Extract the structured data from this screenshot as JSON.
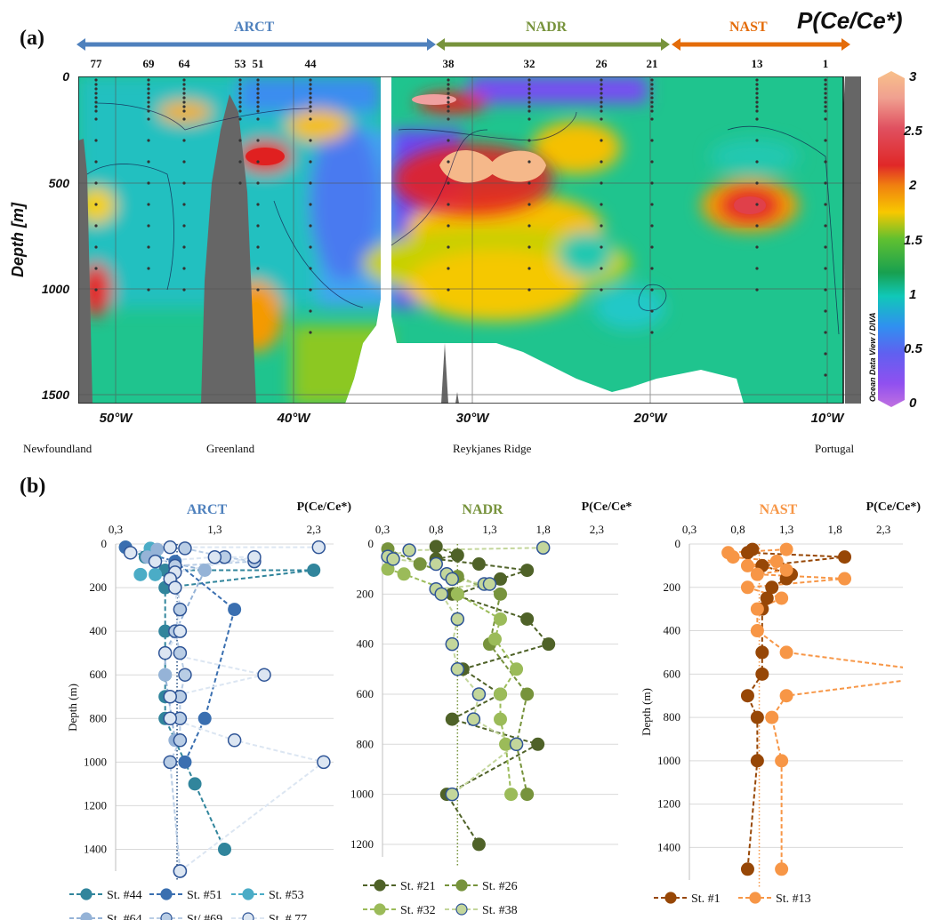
{
  "panel_a": {
    "label": "(a)",
    "title": "P(Ce/Ce*)",
    "provinces": [
      {
        "name": "ARCT",
        "color": "#4f81bd"
      },
      {
        "name": "NADR",
        "color": "#77933c"
      },
      {
        "name": "NAST",
        "color": "#e46c0a"
      }
    ],
    "stations": [
      "77",
      "69",
      "64",
      "53",
      "51",
      "44",
      "38",
      "32",
      "26",
      "21",
      "13",
      "1"
    ],
    "y_axis_title": "Depth [m]",
    "depth_ticks": [
      "0",
      "500",
      "1000",
      "1500"
    ],
    "lon_ticks": [
      "50°W",
      "40°W",
      "30°W",
      "20°W",
      "10°W"
    ],
    "places": [
      "Newfoundland",
      "Greenland",
      "Reykjanes Ridge",
      "Portugal"
    ],
    "contour_label": "1",
    "colorbar": {
      "ticks": [
        "3",
        "2.5",
        "2",
        "1.5",
        "1",
        "0.5",
        "0"
      ],
      "range": [
        0,
        3
      ]
    },
    "credit": "Ocean Data View / DIVA"
  },
  "panel_b": {
    "label": "(b)"
  },
  "chart_data": [
    {
      "type": "scatter",
      "title": "ARCT",
      "xlabel": "P(Ce/Ce*)",
      "ylabel": "Depth (m)",
      "x_ticks": [
        "0,3",
        "1,3",
        "2,3"
      ],
      "y_ticks": [
        "0",
        "200",
        "400",
        "600",
        "800",
        "1000",
        "1200",
        "1400"
      ],
      "xlim": [
        0.3,
        2.5
      ],
      "ylim": [
        0,
        1500
      ],
      "series": [
        {
          "name": "St. #44",
          "color": "#31859c",
          "points": [
            [
              0.4,
              15
            ],
            [
              0.6,
              60
            ],
            [
              0.8,
              120
            ],
            [
              2.3,
              120
            ],
            [
              0.8,
              200
            ],
            [
              0.8,
              400
            ],
            [
              0.8,
              600
            ],
            [
              0.8,
              700
            ],
            [
              0.8,
              800
            ],
            [
              1.1,
              1100
            ],
            [
              1.4,
              1400
            ]
          ]
        },
        {
          "name": "St. #51",
          "color": "#3a6fb0",
          "points": [
            [
              0.4,
              15
            ],
            [
              0.9,
              80
            ],
            [
              1.5,
              300
            ],
            [
              1.2,
              800
            ],
            [
              1.0,
              1000
            ]
          ]
        },
        {
          "name": "St. #53",
          "color": "#4bacc6",
          "points": [
            [
              0.65,
              20
            ],
            [
              0.7,
              70
            ],
            [
              0.7,
              140
            ],
            [
              0.55,
              140
            ]
          ]
        },
        {
          "name": "St. #64",
          "color": "#95b3d7",
          "points": [
            [
              0.72,
              25
            ],
            [
              0.62,
              60
            ],
            [
              1.2,
              120
            ],
            [
              0.8,
              500
            ],
            [
              0.8,
              600
            ],
            [
              0.9,
              900
            ]
          ]
        },
        {
          "name": "St/ #69",
          "color": "#b9cde5",
          "points": [
            [
              1.0,
              20
            ],
            [
              1.4,
              60
            ],
            [
              1.7,
              80
            ],
            [
              0.9,
              100
            ],
            [
              0.95,
              300
            ],
            [
              0.9,
              400
            ],
            [
              0.95,
              500
            ],
            [
              1.0,
              600
            ],
            [
              0.95,
              700
            ],
            [
              0.95,
              800
            ],
            [
              0.95,
              900
            ],
            [
              0.85,
              1000
            ],
            [
              0.95,
              1500
            ]
          ]
        },
        {
          "name": "St. # 77",
          "color": "#dce6f2",
          "points": [
            [
              2.35,
              15
            ],
            [
              0.85,
              15
            ],
            [
              0.45,
              40
            ],
            [
              0.7,
              80
            ],
            [
              1.3,
              60
            ],
            [
              1.7,
              60
            ],
            [
              0.9,
              130
            ],
            [
              0.85,
              160
            ],
            [
              0.9,
              200
            ],
            [
              0.95,
              400
            ],
            [
              0.8,
              500
            ],
            [
              1.8,
              600
            ],
            [
              0.85,
              700
            ],
            [
              0.85,
              800
            ],
            [
              1.5,
              900
            ],
            [
              2.4,
              1000
            ],
            [
              0.95,
              1500
            ]
          ]
        }
      ]
    },
    {
      "type": "scatter",
      "title": "NADR",
      "xlabel": "P(Ce/Ce*)",
      "ylabel": "Depth (m)",
      "x_ticks": [
        "0,3",
        "0,8",
        "1,3",
        "1,8",
        "2,3"
      ],
      "y_ticks": [
        "0",
        "200",
        "400",
        "600",
        "800",
        "1000",
        "1200"
      ],
      "xlim": [
        0.3,
        2.5
      ],
      "ylim": [
        0,
        1250
      ],
      "series": [
        {
          "name": "St. #21",
          "color": "#4f6228",
          "points": [
            [
              0.8,
              10
            ],
            [
              1.0,
              45
            ],
            [
              0.8,
              60
            ],
            [
              1.2,
              80
            ],
            [
              1.65,
              105
            ],
            [
              1.4,
              140
            ],
            [
              1.0,
              200
            ],
            [
              0.95,
              200
            ],
            [
              1.65,
              300
            ],
            [
              1.85,
              400
            ],
            [
              1.05,
              500
            ],
            [
              1.4,
              600
            ],
            [
              0.95,
              700
            ],
            [
              1.75,
              800
            ],
            [
              0.9,
              1000
            ],
            [
              1.2,
              1200
            ]
          ]
        },
        {
          "name": "St. #26",
          "color": "#77933c",
          "points": [
            [
              0.35,
              20
            ],
            [
              0.65,
              80
            ],
            [
              1.0,
              130
            ],
            [
              1.4,
              200
            ],
            [
              1.3,
              400
            ],
            [
              1.65,
              600
            ],
            [
              1.55,
              800
            ],
            [
              1.65,
              1000
            ]
          ]
        },
        {
          "name": "St. #32",
          "color": "#9bbb59",
          "points": [
            [
              0.35,
              100
            ],
            [
              0.5,
              120
            ],
            [
              1.0,
              200
            ],
            [
              1.4,
              300
            ],
            [
              1.35,
              380
            ],
            [
              1.55,
              500
            ],
            [
              1.4,
              600
            ],
            [
              1.4,
              700
            ],
            [
              1.45,
              800
            ],
            [
              1.5,
              1000
            ]
          ]
        },
        {
          "name": "St. #38",
          "color": "#c3d69b",
          "points": [
            [
              1.8,
              15
            ],
            [
              0.55,
              25
            ],
            [
              0.35,
              50
            ],
            [
              0.4,
              60
            ],
            [
              0.8,
              80
            ],
            [
              0.9,
              120
            ],
            [
              0.95,
              140
            ],
            [
              1.25,
              160
            ],
            [
              1.3,
              160
            ],
            [
              0.8,
              180
            ],
            [
              0.85,
              200
            ],
            [
              1.0,
              300
            ],
            [
              0.95,
              400
            ],
            [
              1.0,
              500
            ],
            [
              1.2,
              600
            ],
            [
              1.15,
              700
            ],
            [
              1.55,
              800
            ],
            [
              0.95,
              1000
            ]
          ]
        }
      ]
    },
    {
      "type": "scatter",
      "title": "NAST",
      "xlabel": "P(Ce/Ce*)",
      "ylabel": "Depth (m)",
      "x_ticks": [
        "0,3",
        "0,8",
        "1,3",
        "1,8",
        "2,3"
      ],
      "y_ticks": [
        "0",
        "200",
        "400",
        "600",
        "800",
        "1000",
        "1200",
        "1400"
      ],
      "xlim": [
        0.3,
        2.5
      ],
      "ylim": [
        0,
        1550
      ],
      "series": [
        {
          "name": "St. #1",
          "color": "#974706",
          "points": [
            [
              0.95,
              25
            ],
            [
              0.9,
              40
            ],
            [
              1.9,
              60
            ],
            [
              1.05,
              100
            ],
            [
              1.35,
              140
            ],
            [
              1.3,
              160
            ],
            [
              1.15,
              200
            ],
            [
              1.1,
              250
            ],
            [
              1.05,
              300
            ],
            [
              1.05,
              500
            ],
            [
              1.05,
              600
            ],
            [
              0.9,
              700
            ],
            [
              1.0,
              800
            ],
            [
              1.0,
              1000
            ],
            [
              0.9,
              1500
            ]
          ]
        },
        {
          "name": "St. #13",
          "color": "#f79646",
          "points": [
            [
              1.3,
              25
            ],
            [
              0.7,
              40
            ],
            [
              0.75,
              60
            ],
            [
              1.2,
              80
            ],
            [
              0.9,
              100
            ],
            [
              1.3,
              120
            ],
            [
              1.0,
              140
            ],
            [
              1.9,
              160
            ],
            [
              0.9,
              200
            ],
            [
              1.25,
              250
            ],
            [
              1.0,
              300
            ],
            [
              1.0,
              400
            ],
            [
              1.3,
              500
            ],
            [
              2.6,
              575
            ],
            [
              2.6,
              625
            ],
            [
              1.3,
              700
            ],
            [
              1.15,
              800
            ],
            [
              1.25,
              1000
            ],
            [
              1.25,
              1500
            ]
          ]
        }
      ]
    }
  ]
}
